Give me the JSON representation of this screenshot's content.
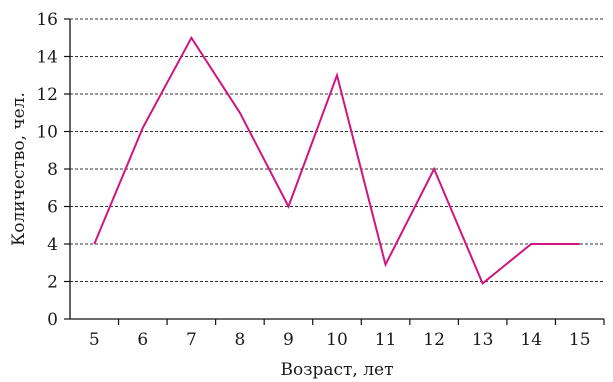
{
  "chart_data": {
    "type": "line",
    "title": "",
    "xlabel": "Возраст, лет",
    "ylabel": "Количество, чел.",
    "x": [
      5,
      6,
      7,
      8,
      9,
      10,
      11,
      12,
      13,
      14,
      15
    ],
    "series": [
      {
        "values": [
          4,
          10.2,
          15,
          11,
          6,
          13,
          2.9,
          8,
          1.9,
          4,
          4
        ]
      }
    ],
    "xlim": [
      4.5,
      15.5
    ],
    "ylim": [
      0,
      16
    ],
    "yticks": [
      0,
      2,
      4,
      6,
      8,
      10,
      12,
      14,
      16
    ],
    "xticks": [
      5,
      6,
      7,
      8,
      9,
      10,
      11,
      12,
      13,
      14,
      15
    ],
    "grid": "horizontal-dashed",
    "legend": "none",
    "line_color": "#d0157f"
  }
}
